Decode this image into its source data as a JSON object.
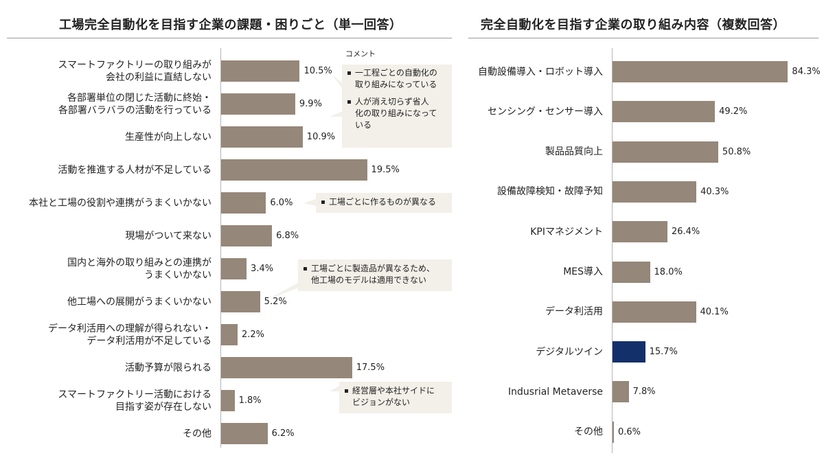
{
  "colors": {
    "bar": "#958779",
    "highlight": "#13306a",
    "bubble": "#f3efe9"
  },
  "chart_data": [
    {
      "type": "bar",
      "orientation": "horizontal",
      "title": "工場完全自動化を目指す企業の課題・困りごと（単一回答）",
      "categories": [
        "スマートファクトリーの取り組みが\n会社の利益に直結しない",
        "各部署単位の閉じた活動に終始・\n各部署バラバラの活動を行っている",
        "生産性が向上しない",
        "活動を推進する人材が不足している",
        "本社と工場の役割や連携がうまくいかない",
        "現場がついて来ない",
        "国内と海外の取り組みとの連携が\nうまくいかない",
        "他工場への展開がうまくいかない",
        "データ利活用への理解が得られない・\nデータ利活用が不足している",
        "活動予算が限られる",
        "スマートファクトリー活動における\n目指す姿が存在しない",
        "その他"
      ],
      "values": [
        10.5,
        9.9,
        10.9,
        19.5,
        6.0,
        6.8,
        3.4,
        5.2,
        2.2,
        17.5,
        1.8,
        6.2
      ],
      "value_labels": [
        "10.5%",
        "9.9%",
        "10.9%",
        "19.5%",
        "6.0%",
        "6.8%",
        "3.4%",
        "5.2%",
        "2.2%",
        "17.5%",
        "1.8%",
        "6.2%"
      ],
      "comments_title": "コメント",
      "comments": [
        {
          "anchor_index": 0,
          "items": [
            "一工程ごとの自動化の\n取り組みになっている",
            "人が消え切らず省人\n化の取り組みになって\nいる"
          ]
        },
        {
          "anchor_index": 4,
          "items": [
            "工場ごとに作るものが異なる"
          ]
        },
        {
          "anchor_index": 7,
          "items": [
            "工場ごとに製造品が異なるため、\n他工場のモデルは適用できない"
          ]
        },
        {
          "anchor_index": 10,
          "items": [
            "経営層や本社サイドに\nビジョンがない"
          ]
        }
      ]
    },
    {
      "type": "bar",
      "orientation": "horizontal",
      "title": "完全自動化を目指す企業の取り組み内容（複数回答）",
      "categories": [
        "自動設備導入・ロボット導入",
        "センシング・センサー導入",
        "製品品質向上",
        "設備故障検知・故障予知",
        "KPIマネジメント",
        "MES導入",
        "データ利活用",
        "デジタルツイン",
        "Indusrial Metaverse",
        "その他"
      ],
      "values": [
        84.3,
        49.2,
        50.8,
        40.3,
        26.4,
        18.0,
        40.1,
        15.7,
        7.8,
        0.6
      ],
      "value_labels": [
        "84.3%",
        "49.2%",
        "50.8%",
        "40.3%",
        "26.4%",
        "18.0%",
        "40.1%",
        "15.7%",
        "7.8%",
        "0.6%"
      ],
      "highlight_index": 7
    }
  ]
}
